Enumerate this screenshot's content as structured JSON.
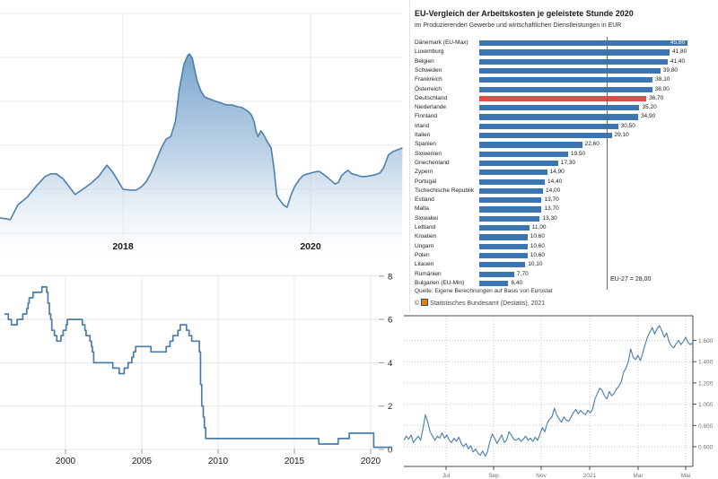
{
  "chart_data": [
    {
      "id": "area-chart-top-left",
      "type": "area",
      "title": "",
      "x_ticks": [
        {
          "label": "2018",
          "year": 2018
        },
        {
          "label": "2020",
          "year": 2020
        }
      ],
      "y_axis_labels_visible": false,
      "grid": true,
      "line_color": "#4d80ad",
      "fill_top_color": "#6898c5",
      "xlim": [
        2016.69,
        2021.0
      ],
      "series": [
        {
          "name": "indicator",
          "points": [
            [
              2016.69,
              0.35
            ],
            [
              2016.8,
              0.31
            ],
            [
              2016.88,
              0.65
            ],
            [
              2016.98,
              0.82
            ],
            [
              2017.07,
              1.06
            ],
            [
              2017.17,
              1.29
            ],
            [
              2017.23,
              1.35
            ],
            [
              2017.29,
              1.35
            ],
            [
              2017.36,
              1.24
            ],
            [
              2017.44,
              1.02
            ],
            [
              2017.49,
              0.88
            ],
            [
              2017.57,
              1.0
            ],
            [
              2017.65,
              1.12
            ],
            [
              2017.74,
              1.29
            ],
            [
              2017.83,
              1.55
            ],
            [
              2017.89,
              1.39
            ],
            [
              2017.94,
              1.22
            ],
            [
              2018.0,
              1.0
            ],
            [
              2018.08,
              0.98
            ],
            [
              2018.14,
              0.98
            ],
            [
              2018.2,
              1.06
            ],
            [
              2018.25,
              1.18
            ],
            [
              2018.3,
              1.37
            ],
            [
              2018.35,
              1.63
            ],
            [
              2018.41,
              1.94
            ],
            [
              2018.46,
              2.14
            ],
            [
              2018.51,
              2.2
            ],
            [
              2018.56,
              2.55
            ],
            [
              2018.6,
              3.27
            ],
            [
              2018.65,
              3.84
            ],
            [
              2018.69,
              4.04
            ],
            [
              2018.71,
              4.08
            ],
            [
              2018.74,
              3.98
            ],
            [
              2018.77,
              3.67
            ],
            [
              2018.79,
              3.47
            ],
            [
              2018.83,
              3.24
            ],
            [
              2018.87,
              3.1
            ],
            [
              2018.92,
              3.06
            ],
            [
              2018.99,
              3.0
            ],
            [
              2019.05,
              2.96
            ],
            [
              2019.1,
              2.92
            ],
            [
              2019.16,
              2.92
            ],
            [
              2019.22,
              2.88
            ],
            [
              2019.27,
              2.86
            ],
            [
              2019.33,
              2.78
            ],
            [
              2019.37,
              2.69
            ],
            [
              2019.4,
              2.53
            ],
            [
              2019.42,
              2.31
            ],
            [
              2019.44,
              2.2
            ],
            [
              2019.47,
              2.33
            ],
            [
              2019.5,
              2.24
            ],
            [
              2019.54,
              2.08
            ],
            [
              2019.58,
              1.94
            ],
            [
              2019.61,
              1.49
            ],
            [
              2019.64,
              0.86
            ],
            [
              2019.67,
              0.76
            ],
            [
              2019.71,
              0.65
            ],
            [
              2019.75,
              0.59
            ],
            [
              2019.79,
              0.86
            ],
            [
              2019.83,
              1.06
            ],
            [
              2019.88,
              1.22
            ],
            [
              2019.92,
              1.31
            ],
            [
              2019.97,
              1.35
            ],
            [
              2020.04,
              1.39
            ],
            [
              2020.09,
              1.41
            ],
            [
              2020.13,
              1.35
            ],
            [
              2020.18,
              1.27
            ],
            [
              2020.23,
              1.18
            ],
            [
              2020.26,
              1.12
            ],
            [
              2020.3,
              1.16
            ],
            [
              2020.33,
              1.31
            ],
            [
              2020.37,
              1.39
            ],
            [
              2020.4,
              1.43
            ],
            [
              2020.44,
              1.35
            ],
            [
              2020.48,
              1.33
            ],
            [
              2020.54,
              1.29
            ],
            [
              2020.59,
              1.29
            ],
            [
              2020.64,
              1.31
            ],
            [
              2020.69,
              1.33
            ],
            [
              2020.74,
              1.37
            ],
            [
              2020.78,
              1.49
            ],
            [
              2020.83,
              1.78
            ],
            [
              2020.88,
              1.86
            ],
            [
              2020.93,
              1.9
            ],
            [
              2020.98,
              1.94
            ]
          ]
        }
      ]
    },
    {
      "id": "destatis-labour-costs-bar",
      "type": "bar",
      "orientation": "horizontal",
      "title": "EU-Vergleich der Arbeitskosten je geleistete Stunde 2020",
      "subtitle": "im Produzierenden Gewerbe und wirtschaftlichen Dienstleistungen in EUR",
      "categories": [
        "Dänemark (EU-Max)",
        "Luxemburg",
        "Belgien",
        "Schweden",
        "Frankreich",
        "Österreich",
        "Deutschland",
        "Niederlande",
        "Finnland",
        "Irland",
        "Italien",
        "Spanien",
        "Slowenien",
        "Griechenland",
        "Zypern",
        "Portugal",
        "Tschechische Republik",
        "Estland",
        "Malta",
        "Slowakei",
        "Lettland",
        "Kroatien",
        "Ungarn",
        "Polen",
        "Litauen",
        "Rumänien",
        "Bulgarien (EU-Min)"
      ],
      "values": [
        45.8,
        41.8,
        41.4,
        39.8,
        38.1,
        38.0,
        36.7,
        35.2,
        34.9,
        30.5,
        29.1,
        22.6,
        19.5,
        17.3,
        14.9,
        14.4,
        14.0,
        13.7,
        13.7,
        13.3,
        11.0,
        10.6,
        10.6,
        10.6,
        10.1,
        7.7,
        6.4
      ],
      "value_labels": [
        "45,80",
        "41,80",
        "41,40",
        "39,80",
        "38,10",
        "38,00",
        "36,70",
        "35,20",
        "34,90",
        "30,50",
        "29,10",
        "22,60",
        "19,50",
        "17,30",
        "14,90",
        "14,40",
        "14,00",
        "13,70",
        "13,70",
        "13,30",
        "11,00",
        "10,60",
        "10,60",
        "10,60",
        "10,10",
        "7,70",
        "6,40"
      ],
      "inside_label_indices": [
        0
      ],
      "highlight_index": 6,
      "bar_color": "#3b76b2",
      "highlight_color": "#e14b4b",
      "reference_line": {
        "label": "EU-27 = 28,00",
        "value": 28.0
      },
      "source": "Quelle: Eigene Berechnungen auf Basis von Eurostat",
      "copyright_symbol": "©",
      "copyright": "Statistisches Bundesamt (Destatis), 2021"
    },
    {
      "id": "policy-rate-step-line",
      "type": "line",
      "line_style": "step",
      "x_ticks": [
        "2000",
        "2005",
        "2010",
        "2015",
        "2020"
      ],
      "y_ticks": [
        "8",
        "6",
        "4",
        "2",
        "0"
      ],
      "y_tick_values": [
        8,
        6,
        4,
        2,
        0
      ],
      "ylim": [
        0,
        8.2
      ],
      "xlim": [
        1996,
        2021.4
      ],
      "grid": true,
      "line_color": "#4a7ca9",
      "points": [
        [
          1996.0,
          6.25
        ],
        [
          1996.25,
          6.0
        ],
        [
          1996.45,
          5.75
        ],
        [
          1996.83,
          6.0
        ],
        [
          1997.2,
          6.25
        ],
        [
          1997.45,
          6.5
        ],
        [
          1997.55,
          6.75
        ],
        [
          1997.62,
          7.0
        ],
        [
          1997.87,
          7.25
        ],
        [
          1998.45,
          7.5
        ],
        [
          1998.77,
          7.25
        ],
        [
          1998.85,
          6.75
        ],
        [
          1998.94,
          6.25
        ],
        [
          1999.03,
          6.0
        ],
        [
          1999.1,
          5.5
        ],
        [
          1999.27,
          5.25
        ],
        [
          1999.43,
          5.0
        ],
        [
          1999.7,
          5.25
        ],
        [
          1999.85,
          5.5
        ],
        [
          2000.04,
          5.75
        ],
        [
          2000.12,
          6.0
        ],
        [
          2001.1,
          5.75
        ],
        [
          2001.27,
          5.5
        ],
        [
          2001.35,
          5.25
        ],
        [
          2001.6,
          5.0
        ],
        [
          2001.7,
          4.75
        ],
        [
          2001.76,
          4.5
        ],
        [
          2001.85,
          4.0
        ],
        [
          2003.1,
          3.75
        ],
        [
          2003.52,
          3.5
        ],
        [
          2003.85,
          3.75
        ],
        [
          2004.1,
          4.0
        ],
        [
          2004.35,
          4.25
        ],
        [
          2004.45,
          4.5
        ],
        [
          2004.6,
          4.75
        ],
        [
          2005.6,
          4.5
        ],
        [
          2006.6,
          4.75
        ],
        [
          2006.85,
          5.0
        ],
        [
          2007.04,
          5.25
        ],
        [
          2007.37,
          5.5
        ],
        [
          2007.52,
          5.75
        ],
        [
          2007.93,
          5.5
        ],
        [
          2008.1,
          5.25
        ],
        [
          2008.27,
          5.0
        ],
        [
          2008.77,
          4.5
        ],
        [
          2008.85,
          3.0
        ],
        [
          2008.93,
          2.0
        ],
        [
          2009.03,
          1.5
        ],
        [
          2009.1,
          1.0
        ],
        [
          2009.19,
          0.5
        ],
        [
          2016.6,
          0.25
        ],
        [
          2017.87,
          0.5
        ],
        [
          2018.6,
          0.75
        ],
        [
          2020.2,
          0.1
        ],
        [
          2021.42,
          0.1
        ]
      ]
    },
    {
      "id": "yield-line-chart",
      "type": "line",
      "x_ticks": [
        "Jul",
        "Sep",
        "Nov",
        "2021",
        "Mar",
        "Mai"
      ],
      "y_ticks": [
        "1.600",
        "1.400",
        "1.200",
        "1.000",
        "0.800",
        "0.600"
      ],
      "y_tick_values": [
        1.6,
        1.4,
        1.2,
        1.0,
        0.8,
        0.6
      ],
      "ylim": [
        0.45,
        1.8
      ],
      "grid_style": "dotted",
      "line_color": "#4a7ca9",
      "values": [
        0.66,
        0.7,
        0.67,
        0.71,
        0.64,
        0.67,
        0.7,
        0.66,
        0.77,
        0.9,
        0.83,
        0.74,
        0.7,
        0.66,
        0.7,
        0.68,
        0.73,
        0.68,
        0.71,
        0.66,
        0.64,
        0.68,
        0.65,
        0.69,
        0.63,
        0.6,
        0.63,
        0.58,
        0.61,
        0.55,
        0.58,
        0.54,
        0.52,
        0.56,
        0.51,
        0.55,
        0.65,
        0.72,
        0.68,
        0.63,
        0.67,
        0.71,
        0.64,
        0.66,
        0.74,
        0.71,
        0.67,
        0.66,
        0.68,
        0.65,
        0.67,
        0.7,
        0.66,
        0.68,
        0.65,
        0.69,
        0.66,
        0.72,
        0.78,
        0.74,
        0.82,
        0.86,
        0.88,
        0.96,
        0.9,
        0.86,
        0.83,
        0.88,
        0.85,
        0.84,
        0.88,
        0.92,
        0.95,
        0.91,
        0.94,
        0.92,
        0.9,
        0.94,
        0.92,
        0.95,
        1.05,
        1.1,
        1.15,
        1.13,
        1.08,
        1.05,
        1.12,
        1.08,
        1.1,
        1.14,
        1.17,
        1.21,
        1.3,
        1.34,
        1.4,
        1.52,
        1.44,
        1.42,
        1.46,
        1.41,
        1.48,
        1.56,
        1.63,
        1.68,
        1.72,
        1.66,
        1.71,
        1.74,
        1.69,
        1.63,
        1.67,
        1.59,
        1.55,
        1.53,
        1.57,
        1.6,
        1.56,
        1.59,
        1.63,
        1.58,
        1.56,
        1.58
      ]
    }
  ]
}
